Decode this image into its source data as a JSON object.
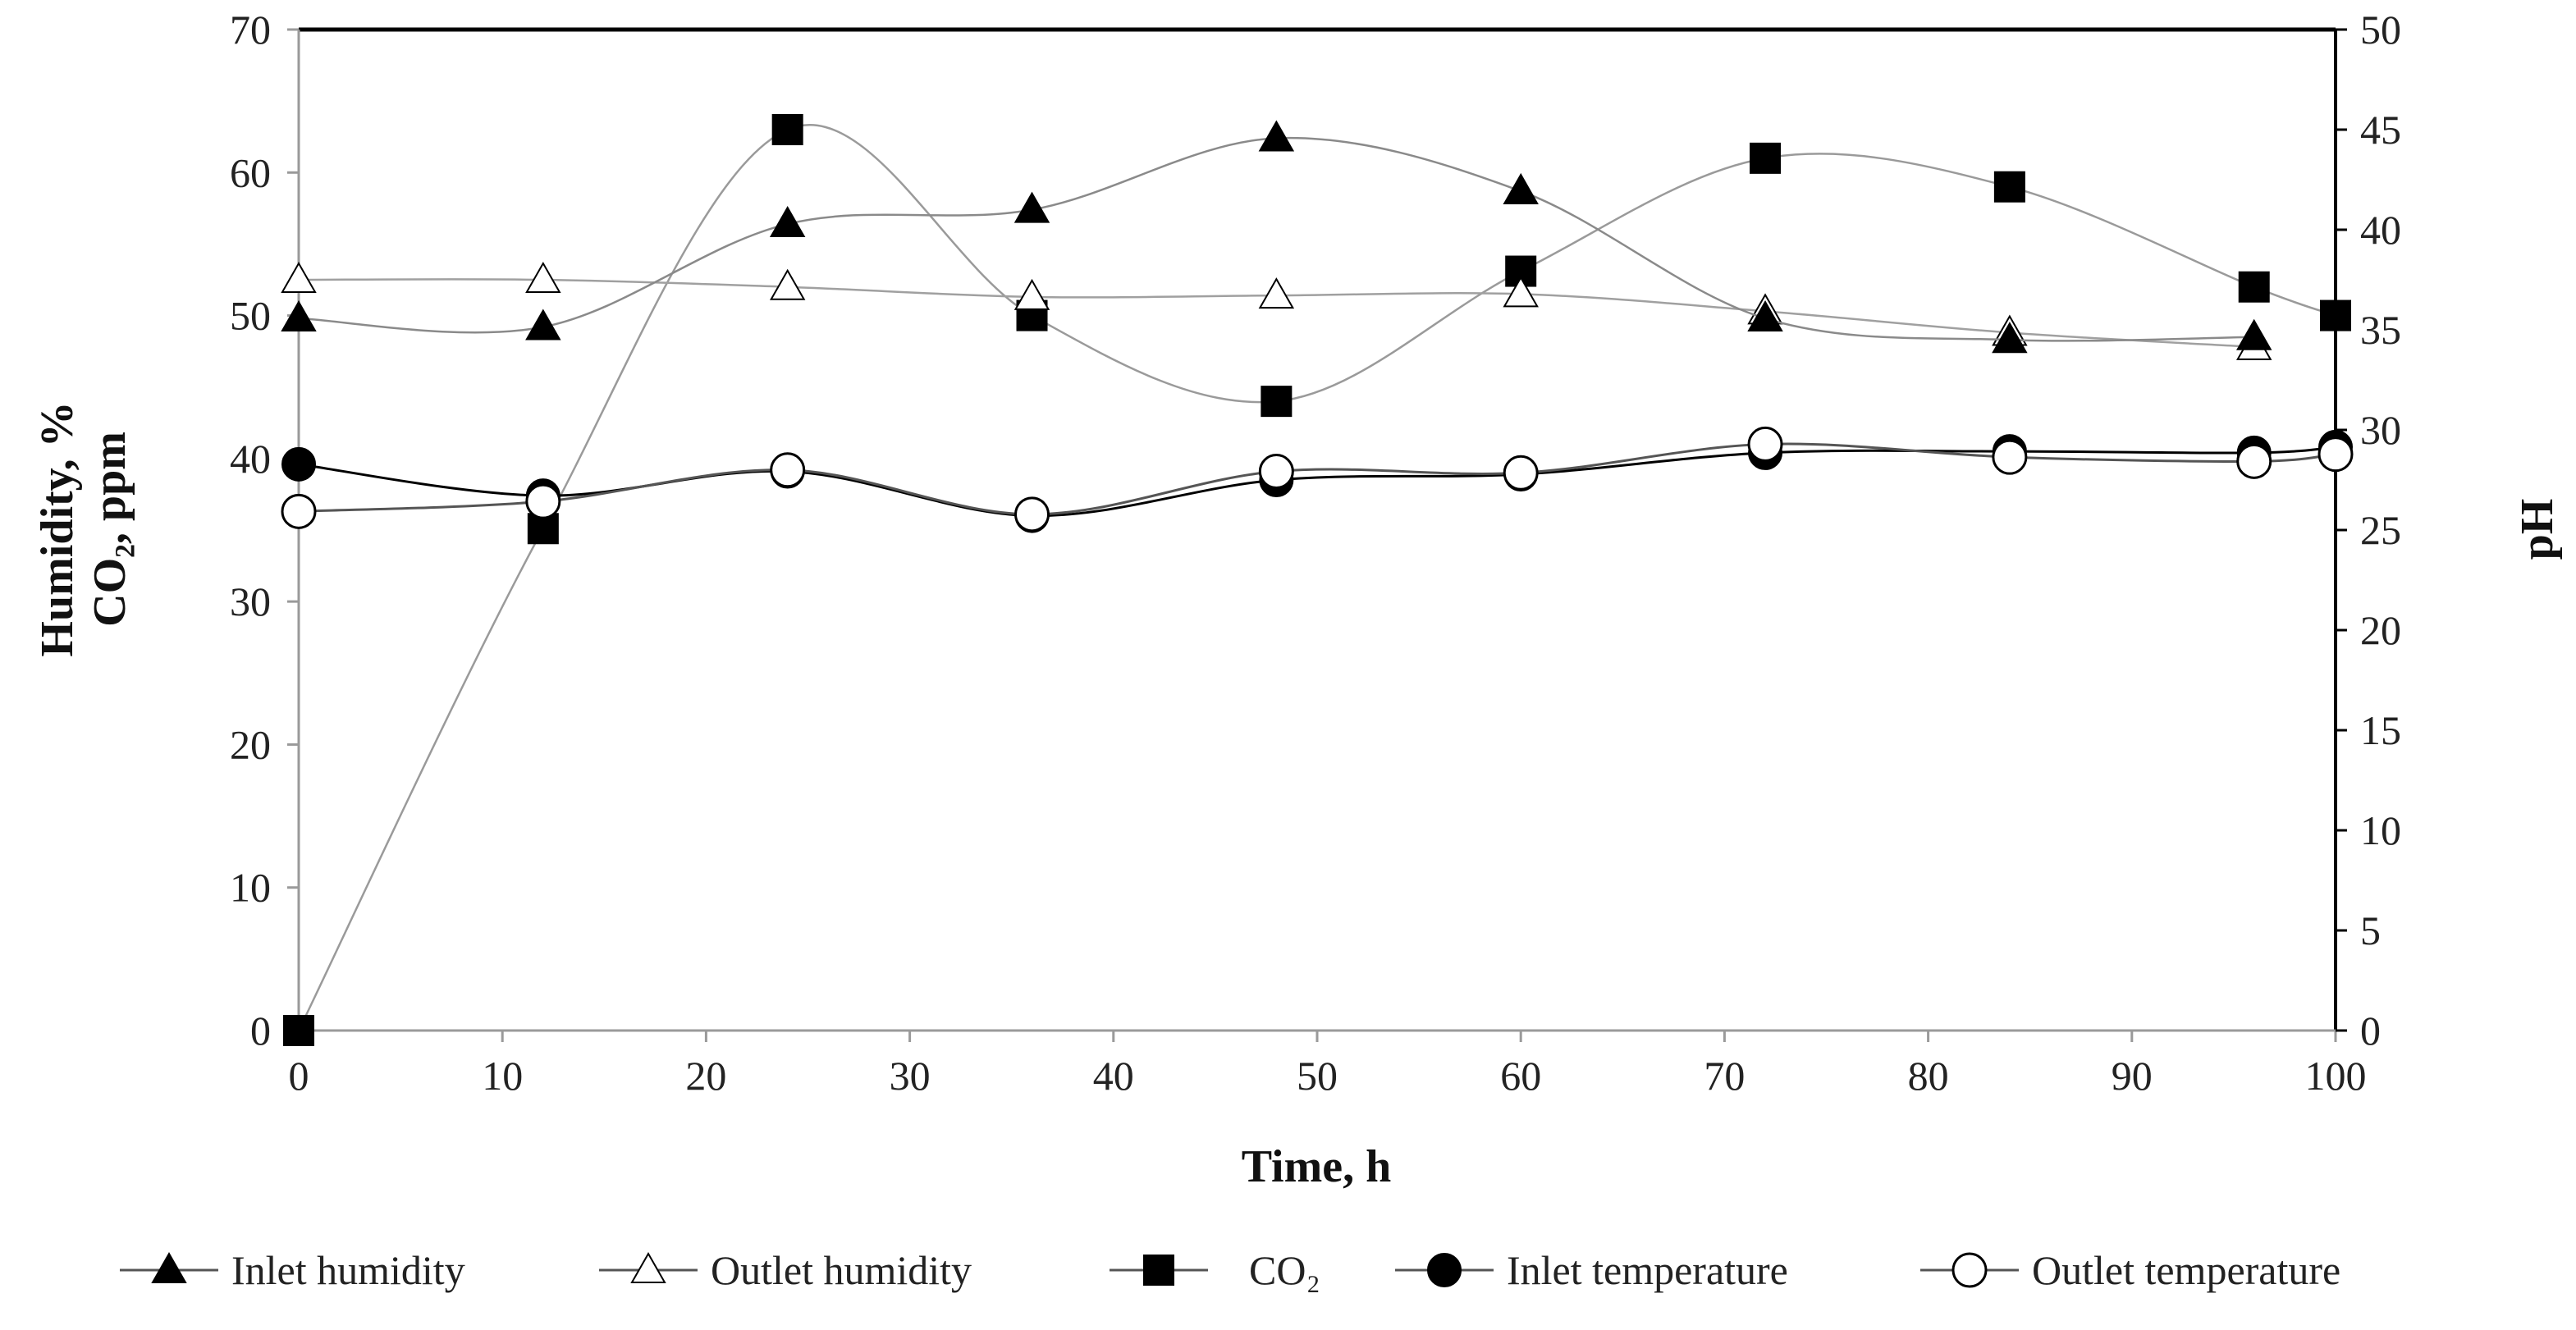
{
  "chart_data": {
    "type": "line",
    "title": "",
    "xlabel": "Time, h",
    "ylabel_left_line1": "Humidity,  %",
    "ylabel_left_line2": "CO₂, ppm",
    "ylabel_right": "pH",
    "xlim": [
      0,
      100
    ],
    "ylim_left": [
      0,
      70
    ],
    "ylim_right": [
      0,
      50
    ],
    "x_ticks": [
      0,
      10,
      20,
      30,
      40,
      50,
      60,
      70,
      80,
      90,
      100
    ],
    "y_left_ticks": [
      0,
      10,
      20,
      30,
      40,
      50,
      60,
      70
    ],
    "y_right_ticks": [
      0,
      5,
      10,
      15,
      20,
      25,
      30,
      35,
      40,
      45,
      50
    ],
    "grid": false,
    "legend_position": "bottom",
    "series": [
      {
        "name": "Inlet humidity",
        "marker": "triangle-filled",
        "axis": "left",
        "x": [
          0,
          12,
          24,
          36,
          48,
          60,
          72,
          84,
          96
        ],
        "values": [
          49.8,
          49.2,
          56.4,
          57.4,
          62.4,
          58.7,
          49.8,
          48.3,
          48.5
        ]
      },
      {
        "name": "Outlet humidity",
        "marker": "triangle-open",
        "axis": "left",
        "x": [
          0,
          12,
          24,
          36,
          48,
          60,
          72,
          84,
          96
        ],
        "values": [
          52.5,
          52.5,
          52.0,
          51.3,
          51.4,
          51.5,
          50.3,
          48.8,
          47.8
        ]
      },
      {
        "name": "CO₂",
        "marker": "square-filled",
        "axis": "left",
        "x": [
          0,
          12,
          24,
          36,
          48,
          60,
          72,
          84,
          96,
          100
        ],
        "values": [
          0,
          35.1,
          63.0,
          50.0,
          44.0,
          53.1,
          61.0,
          59.0,
          52.0,
          50.0
        ]
      },
      {
        "name": "Inlet temperature",
        "marker": "circle-filled",
        "axis": "left",
        "x": [
          0,
          12,
          24,
          36,
          48,
          60,
          72,
          84,
          96,
          100
        ],
        "values": [
          39.6,
          37.4,
          39.1,
          36.0,
          38.5,
          38.9,
          40.4,
          40.5,
          40.4,
          40.8
        ]
      },
      {
        "name": "Outlet temperature",
        "marker": "circle-open",
        "axis": "left",
        "x": [
          0,
          12,
          24,
          36,
          48,
          60,
          72,
          84,
          96,
          100
        ],
        "values": [
          36.3,
          37.0,
          39.2,
          36.1,
          39.1,
          39.0,
          41.0,
          40.1,
          39.8,
          40.3
        ]
      }
    ]
  }
}
